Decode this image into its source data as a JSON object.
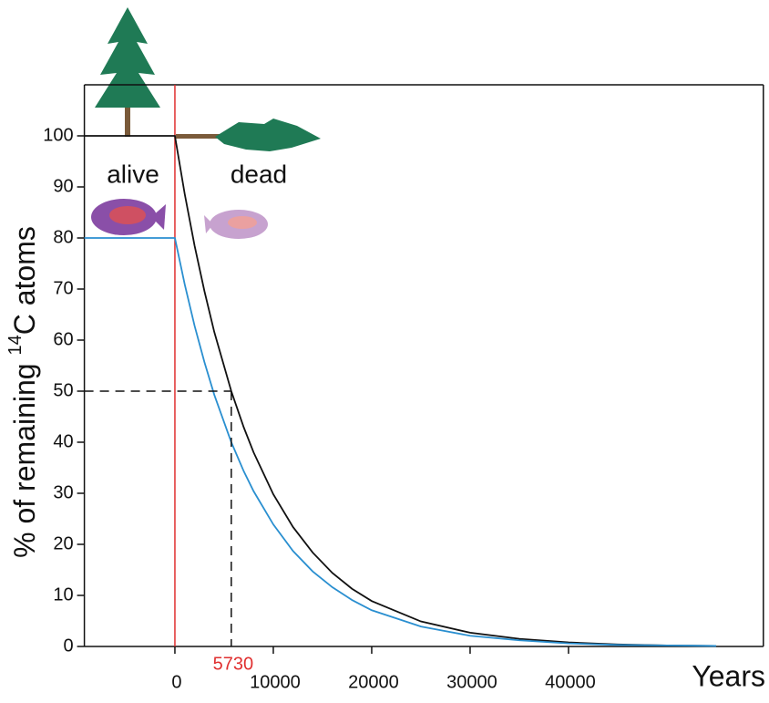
{
  "chart_data": {
    "type": "line",
    "y_label": {
      "before": "% of remaining ",
      "sup": "14",
      "after": "C atoms"
    },
    "x_label": "Years",
    "annotations": {
      "alive": "alive",
      "dead": "dead"
    },
    "half_life": {
      "x": 5730,
      "y": 50
    },
    "x": [
      -9200,
      0,
      1000,
      2000,
      3000,
      4000,
      5730,
      7000,
      8000,
      10000,
      12000,
      14000,
      16000,
      18000,
      20000,
      25000,
      30000,
      35000,
      40000,
      45000,
      50000,
      55000
    ],
    "series": [
      {
        "color": "#111111",
        "values": [
          100,
          100,
          88.6,
          78.5,
          69.6,
          61.6,
          50,
          42.9,
          38.0,
          29.8,
          23.4,
          18.4,
          14.4,
          11.3,
          8.9,
          4.9,
          2.7,
          1.5,
          0.8,
          0.4,
          0.2,
          0.1
        ]
      },
      {
        "color": "#2a8fd0",
        "values": [
          80,
          80,
          70.9,
          62.8,
          55.7,
          49.3,
          40,
          34.3,
          30.4,
          23.9,
          18.7,
          14.7,
          11.6,
          9.1,
          7.1,
          3.9,
          2.1,
          1.2,
          0.6,
          0.3,
          0.2,
          0.1
        ]
      }
    ],
    "xlim": [
      -9200,
      59800
    ],
    "ylim": [
      0,
      110
    ],
    "xticks": [
      0,
      10000,
      20000,
      30000,
      40000
    ],
    "yticks": [
      0,
      10,
      20,
      30,
      40,
      50,
      60,
      70,
      80,
      90,
      100
    ],
    "death_line_color": "#e03030",
    "half_life_label_color": "#e03030"
  }
}
